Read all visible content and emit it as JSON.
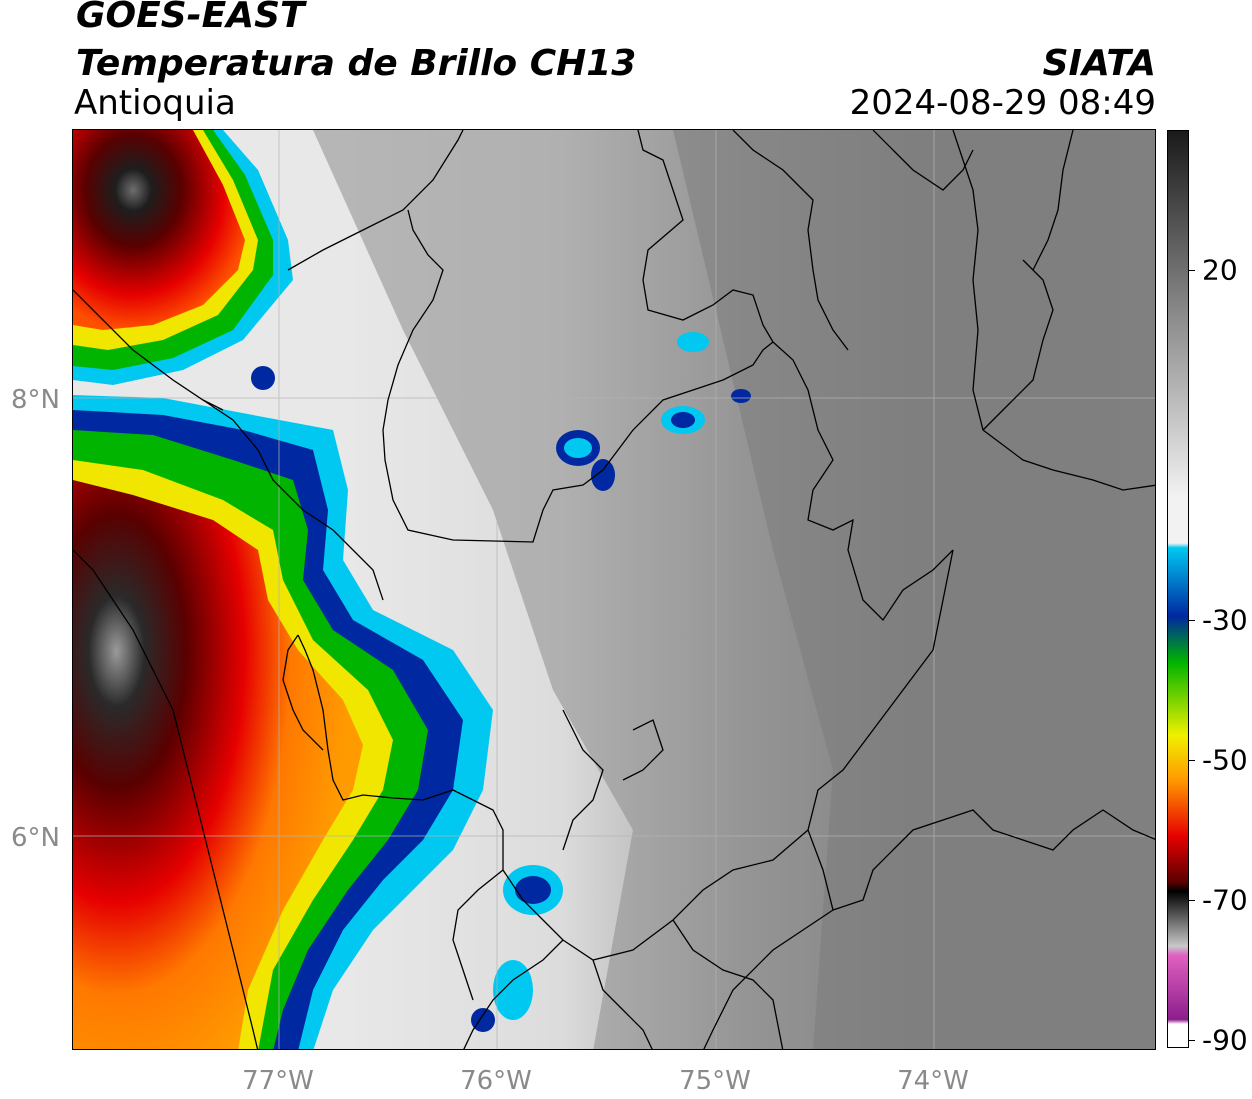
{
  "header": {
    "satellite": "GOES-EAST",
    "product": "Temperatura de Brillo CH13",
    "region": "Antioquia",
    "agency": "SIATA",
    "datetime": "2024-08-29 08:49"
  },
  "map": {
    "lat_labels": [
      "8°N",
      "6°N"
    ],
    "lon_labels": [
      "77°W",
      "76°W",
      "75°W",
      "74°W"
    ]
  },
  "colorbar": {
    "labels": [
      "20",
      "-30",
      "-50",
      "-70",
      "-90"
    ],
    "colors": {
      "warm_top": "#1a1a1a",
      "gray_mid": "#8a8a8a",
      "white": "#f2f2f2",
      "cyan": "#00c8f0",
      "blue": "#0028a0",
      "green": "#00b400",
      "yellow": "#f0f000",
      "orange": "#ff9600",
      "red": "#e60000",
      "dark_red": "#5a0000",
      "black": "#000000",
      "pink": "#e060c0",
      "purple": "#8c1e8c"
    }
  }
}
